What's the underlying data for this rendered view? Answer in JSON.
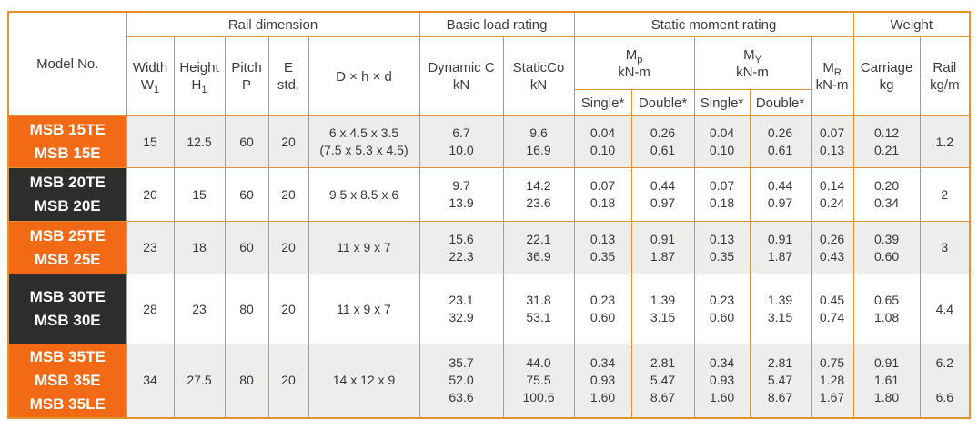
{
  "colors": {
    "border_orange": "#e2922e",
    "model_orange": "#f26a16",
    "model_dark": "#2d2d2c",
    "row_alt_gray": "#ededeb",
    "text": "#35383c"
  },
  "table": {
    "header": {
      "model_no": "Model No.",
      "groups": {
        "rail_dimension": "Rail dimension",
        "basic_load_rating": "Basic load rating",
        "static_moment_rating": "Static moment rating",
        "weight": "Weight"
      },
      "columns": {
        "width": {
          "label": "Width",
          "symbol": "W",
          "sub": "1"
        },
        "height": {
          "label": "Height",
          "symbol": "H",
          "sub": "1"
        },
        "pitch": {
          "label": "Pitch",
          "symbol": "P"
        },
        "e_std": {
          "line1": "E",
          "line2": "std."
        },
        "dxhxd": "D × h × d",
        "dynamic": {
          "line1": "Dynamic C",
          "line2": "kN"
        },
        "static": {
          "line1": "StaticCo",
          "line2": "kN"
        },
        "mp": {
          "main": "M",
          "sub": "p",
          "unit": "kN-m"
        },
        "my": {
          "main": "M",
          "sub": "Y",
          "unit": "kN-m"
        },
        "mr": {
          "main": "M",
          "sub": "R",
          "unit": "kN-m"
        },
        "single": "Single*",
        "double": "Double*",
        "carriage": {
          "line1": "Carriage",
          "line2": "kg"
        },
        "rail": {
          "line1": "Rail",
          "line2": "kg/m"
        }
      }
    },
    "rows": [
      {
        "models": [
          "MSB 15TE",
          "MSB 15E"
        ],
        "model_bg": "orange",
        "width": "15",
        "height": "12.5",
        "pitch": "60",
        "e_std": "20",
        "dxhxd": [
          "6 x 4.5 x 3.5",
          "(7.5 x 5.3 x 4.5)"
        ],
        "dynamic_c": [
          "6.7",
          "10.0"
        ],
        "static_co": [
          "9.6",
          "16.9"
        ],
        "mp_single": [
          "0.04",
          "0.10"
        ],
        "mp_double": [
          "0.26",
          "0.61"
        ],
        "my_single": [
          "0.04",
          "0.10"
        ],
        "my_double": [
          "0.26",
          "0.61"
        ],
        "mr": [
          "0.07",
          "0.13"
        ],
        "carriage": [
          "0.12",
          "0.21"
        ],
        "rail": [
          "1.2"
        ]
      },
      {
        "models": [
          "MSB 20TE",
          "MSB 20E"
        ],
        "model_bg": "dark",
        "width": "20",
        "height": "15",
        "pitch": "60",
        "e_std": "20",
        "dxhxd": [
          "9.5 x 8.5 x 6"
        ],
        "dynamic_c": [
          "9.7",
          "13.9"
        ],
        "static_co": [
          "14.2",
          "23.6"
        ],
        "mp_single": [
          "0.07",
          "0.18"
        ],
        "mp_double": [
          "0.44",
          "0.97"
        ],
        "my_single": [
          "0.07",
          "0.18"
        ],
        "my_double": [
          "0.44",
          "0.97"
        ],
        "mr": [
          "0.14",
          "0.24"
        ],
        "carriage": [
          "0.20",
          "0.34"
        ],
        "rail": [
          "2"
        ]
      },
      {
        "models": [
          "MSB 25TE",
          "MSB 25E"
        ],
        "model_bg": "orange",
        "width": "23",
        "height": "18",
        "pitch": "60",
        "e_std": "20",
        "dxhxd": [
          "11 x 9 x 7"
        ],
        "dynamic_c": [
          "15.6",
          "22.3"
        ],
        "static_co": [
          "22.1",
          "36.9"
        ],
        "mp_single": [
          "0.13",
          "0.35"
        ],
        "mp_double": [
          "0.91",
          "1.87"
        ],
        "my_single": [
          "0.13",
          "0.35"
        ],
        "my_double": [
          "0.91",
          "1.87"
        ],
        "mr": [
          "0.26",
          "0.43"
        ],
        "carriage": [
          "0.39",
          "0.60"
        ],
        "rail": [
          "3"
        ]
      },
      {
        "models": [
          "MSB 30TE",
          "MSB 30E"
        ],
        "model_bg": "dark",
        "width": "28",
        "height": "23",
        "pitch": "80",
        "e_std": "20",
        "dxhxd": [
          "11 x 9 x 7"
        ],
        "dynamic_c": [
          "23.1",
          "32.9"
        ],
        "static_co": [
          "31.8",
          "53.1"
        ],
        "mp_single": [
          "0.23",
          "0.60"
        ],
        "mp_double": [
          "1.39",
          "3.15"
        ],
        "my_single": [
          "0.23",
          "0.60"
        ],
        "my_double": [
          "1.39",
          "3.15"
        ],
        "mr": [
          "0.45",
          "0.74"
        ],
        "carriage": [
          "0.65",
          "1.08"
        ],
        "rail": [
          "4.4"
        ]
      },
      {
        "models": [
          "MSB 35TE",
          "MSB 35E",
          "MSB 35LE"
        ],
        "model_bg": "orange",
        "width": "34",
        "height": "27.5",
        "pitch": "80",
        "e_std": "20",
        "dxhxd": [
          "14 x 12 x 9"
        ],
        "dynamic_c": [
          "35.7",
          "52.0",
          "63.6"
        ],
        "static_co": [
          "44.0",
          "75.5",
          "100.6"
        ],
        "mp_single": [
          "0.34",
          "0.93",
          "1.60"
        ],
        "mp_double": [
          "2.81",
          "5.47",
          "8.67"
        ],
        "my_single": [
          "0.34",
          "0.93",
          "1.60"
        ],
        "my_double": [
          "2.81",
          "5.47",
          "8.67"
        ],
        "mr": [
          "0.75",
          "1.28",
          "1.67"
        ],
        "carriage": [
          "0.91",
          "1.61",
          "1.80"
        ],
        "rail": [
          "6.2",
          "",
          "6.6"
        ]
      }
    ]
  }
}
